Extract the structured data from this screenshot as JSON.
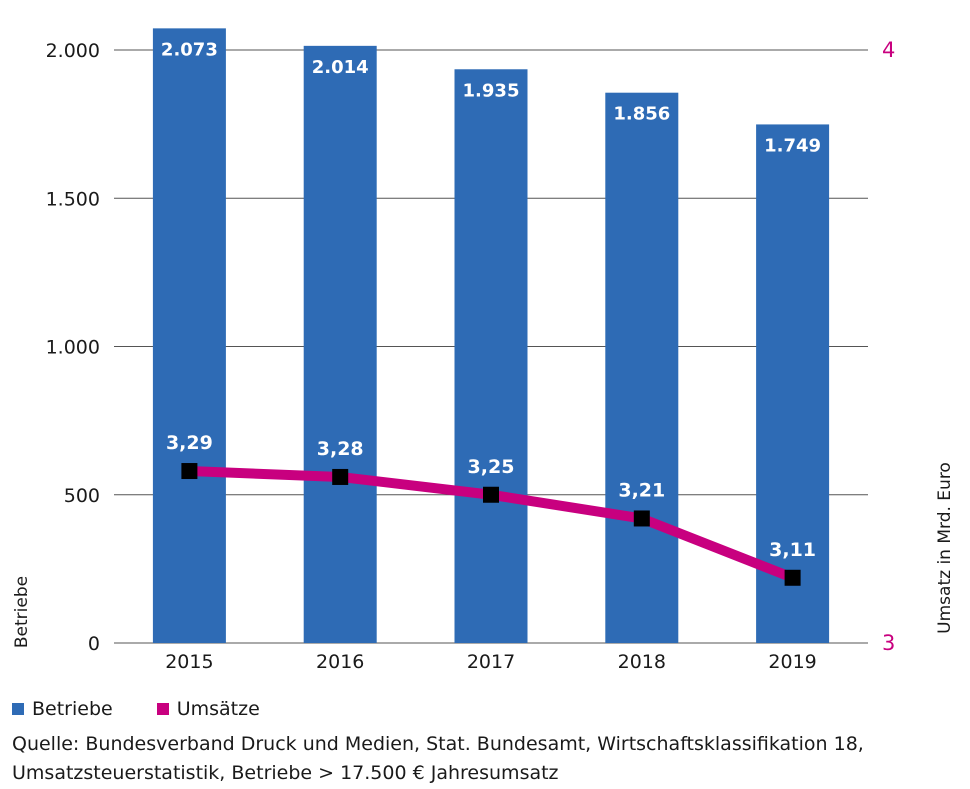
{
  "chart_data": {
    "type": "bar",
    "categories": [
      "2015",
      "2016",
      "2017",
      "2018",
      "2019"
    ],
    "series": [
      {
        "name": "Betriebe",
        "values": [
          2073,
          2014,
          1935,
          1856,
          1749
        ],
        "labels": [
          "2.073",
          "2.014",
          "1.935",
          "1.856",
          "1.749"
        ],
        "color": "#2e6bb5",
        "axis": "left",
        "kind": "bar"
      },
      {
        "name": "Umsätze",
        "values": [
          3.29,
          3.28,
          3.25,
          3.21,
          3.11
        ],
        "labels": [
          "3,29",
          "3,28",
          "3,25",
          "3,21",
          "3,11"
        ],
        "color": "#c8007f",
        "axis": "right",
        "kind": "line"
      }
    ],
    "y_left": {
      "label": "Betriebe",
      "min": 0,
      "max": 2000,
      "ticks": [
        0,
        500,
        1000,
        1500,
        2000
      ],
      "tick_labels": [
        "0",
        "500",
        "1.000",
        "1.500",
        "2.000"
      ]
    },
    "y_right": {
      "label": "Umsatz in Mrd. Euro",
      "min": 3,
      "max": 4,
      "ticks": [
        3,
        4
      ],
      "tick_labels": [
        "3",
        "4"
      ],
      "color": "#c8007f"
    },
    "grid": true
  },
  "legend": [
    {
      "label": "Betriebe",
      "color": "#2e6bb5"
    },
    {
      "label": "Umsätze",
      "color": "#c8007f"
    }
  ],
  "source": "Quelle: Bundesverband Druck und Medien, Stat. Bundesamt, Wirtschaftsklassifikation 18, Umsatzsteuerstatistik, Betriebe > 17.500 € Jahresumsatz"
}
